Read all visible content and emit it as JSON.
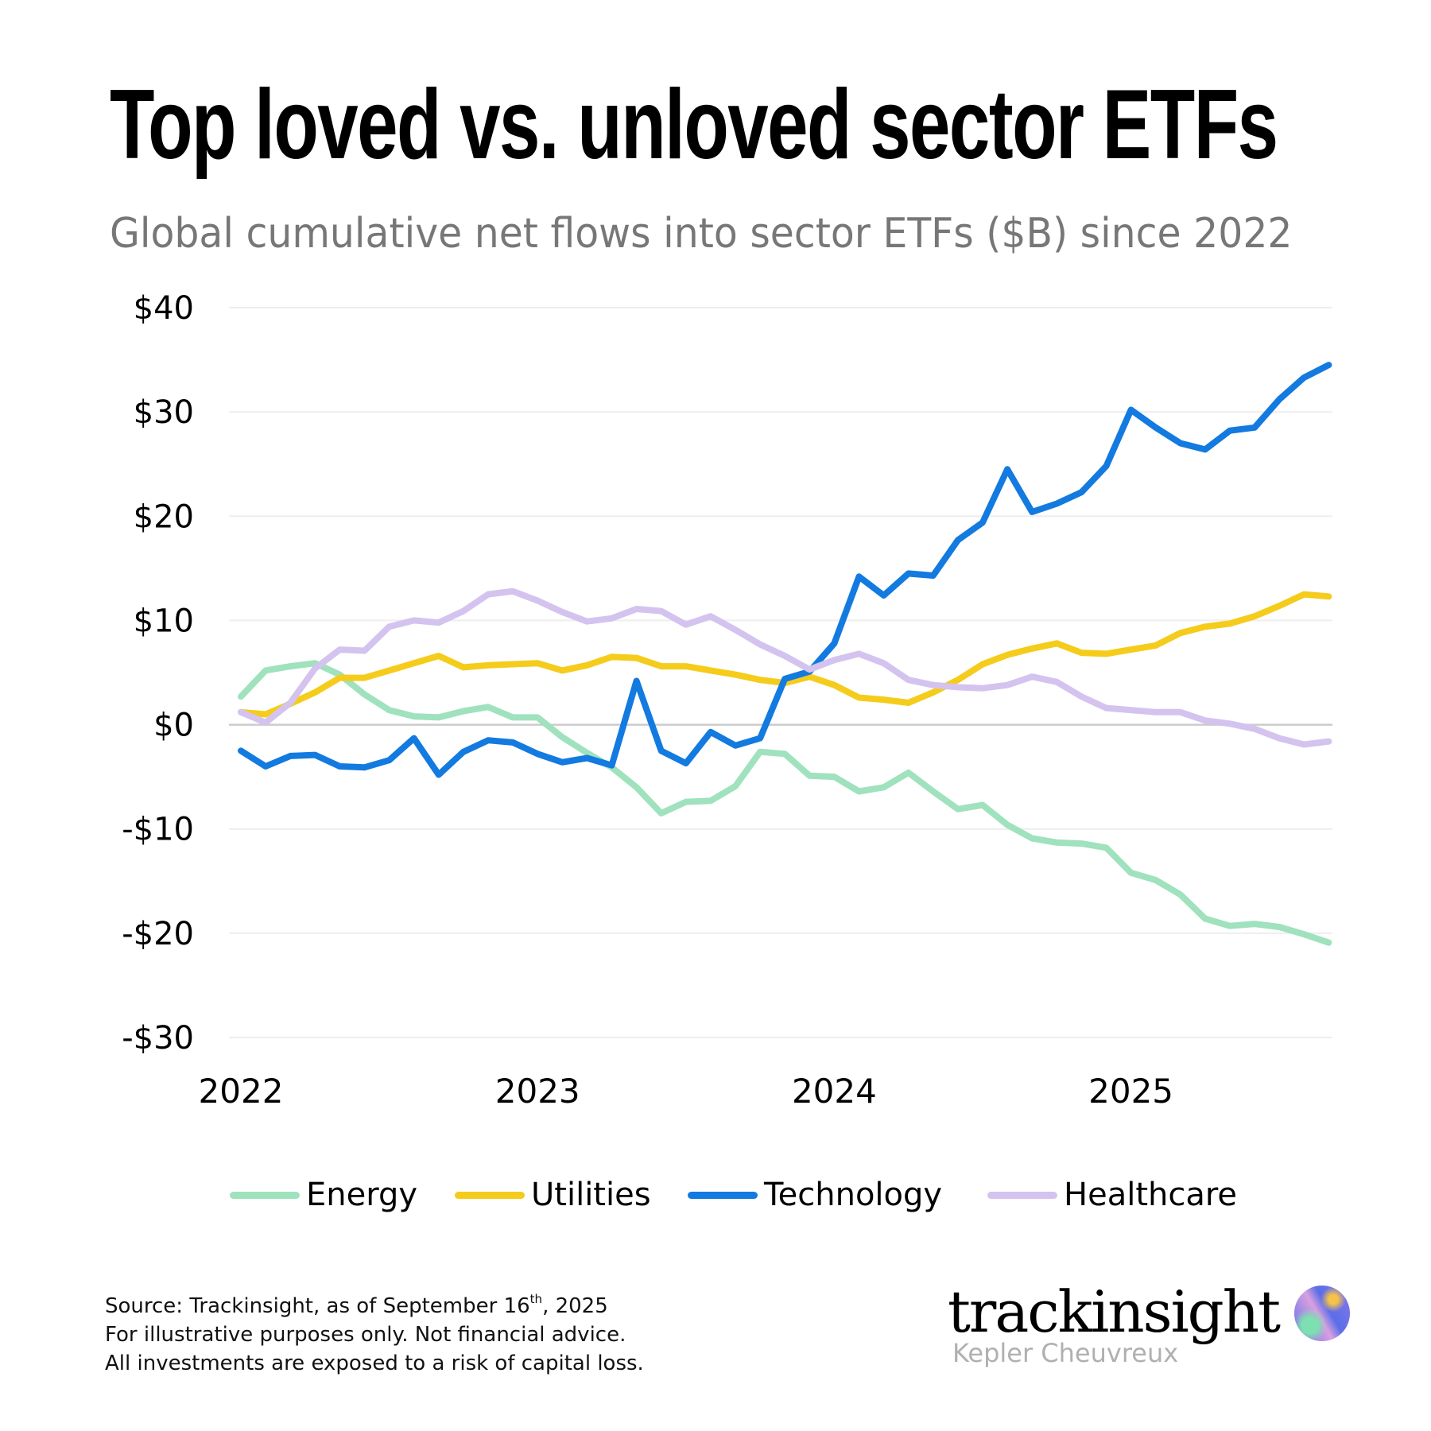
{
  "header": {
    "title": "Top loved vs. unloved sector ETFs",
    "subtitle": "Global cumulative net flows into sector ETFs ($B) since 2022"
  },
  "chart_data": {
    "type": "line",
    "title": "Top loved vs. unloved sector ETFs",
    "subtitle": "Global cumulative net flows into sector ETFs ($B) since 2022",
    "xlabel": "",
    "ylabel": "",
    "x": [
      "2022-01",
      "2022-02",
      "2022-03",
      "2022-04",
      "2022-05",
      "2022-06",
      "2022-07",
      "2022-08",
      "2022-09",
      "2022-10",
      "2022-11",
      "2022-12",
      "2023-01",
      "2023-02",
      "2023-03",
      "2023-04",
      "2023-05",
      "2023-06",
      "2023-07",
      "2023-08",
      "2023-09",
      "2023-10",
      "2023-11",
      "2023-12",
      "2024-01",
      "2024-02",
      "2024-03",
      "2024-04",
      "2024-05",
      "2024-06",
      "2024-07",
      "2024-08",
      "2024-09",
      "2024-10",
      "2024-11",
      "2024-12",
      "2025-01",
      "2025-02",
      "2025-03",
      "2025-04",
      "2025-05",
      "2025-06",
      "2025-07",
      "2025-08",
      "2025-09"
    ],
    "x_tick_labels": [
      "2022",
      "2023",
      "2024",
      "2025"
    ],
    "x_tick_positions": [
      "2022-01",
      "2023-01",
      "2024-01",
      "2025-01"
    ],
    "y_tick_values": [
      40,
      30,
      20,
      10,
      0,
      -10,
      -20,
      -30
    ],
    "y_tick_labels": [
      "$40",
      "$30",
      "$20",
      "$10",
      "$0",
      "-$10",
      "-$20",
      "-$30"
    ],
    "ylim": [
      -30,
      40
    ],
    "grid": true,
    "legend_position": "bottom",
    "series": [
      {
        "name": "Energy",
        "color": "#9fe2bd",
        "values": [
          2.7,
          5.2,
          5.6,
          5.9,
          4.8,
          2.9,
          1.4,
          0.8,
          0.7,
          1.3,
          1.7,
          0.7,
          0.7,
          -1.2,
          -2.7,
          -4.1,
          -6.0,
          -8.5,
          -7.4,
          -7.3,
          -5.9,
          -2.6,
          -2.8,
          -4.9,
          -5.0,
          -6.4,
          -6.0,
          -4.6,
          -6.4,
          -8.1,
          -7.7,
          -9.6,
          -10.9,
          -11.3,
          -11.4,
          -11.8,
          -14.2,
          -14.9,
          -16.3,
          -18.6,
          -19.3,
          -19.1,
          -19.4,
          -20.1,
          -20.9
        ]
      },
      {
        "name": "Utilities",
        "color": "#f5cc1b",
        "values": [
          1.2,
          1.0,
          2.0,
          3.1,
          4.5,
          4.5,
          5.2,
          5.9,
          6.6,
          5.5,
          5.7,
          5.8,
          5.9,
          5.2,
          5.7,
          6.5,
          6.4,
          5.6,
          5.6,
          5.2,
          4.8,
          4.3,
          4.0,
          4.6,
          3.8,
          2.6,
          2.4,
          2.1,
          3.1,
          4.3,
          5.8,
          6.7,
          7.3,
          7.8,
          6.9,
          6.8,
          7.2,
          7.6,
          8.8,
          9.4,
          9.7,
          10.4,
          11.4,
          12.5,
          12.3
        ]
      },
      {
        "name": "Technology",
        "color": "#137ae0",
        "values": [
          -2.5,
          -4.0,
          -3.0,
          -2.9,
          -4.0,
          -4.1,
          -3.4,
          -1.3,
          -4.8,
          -2.6,
          -1.5,
          -1.7,
          -2.8,
          -3.6,
          -3.2,
          -3.9,
          4.2,
          -2.5,
          -3.7,
          -0.7,
          -2.0,
          -1.3,
          4.4,
          5.1,
          7.8,
          14.2,
          12.4,
          14.5,
          14.3,
          17.7,
          19.4,
          24.5,
          20.4,
          21.2,
          22.3,
          24.8,
          30.2,
          28.5,
          27.0,
          26.4,
          28.2,
          28.5,
          31.2,
          33.3,
          34.5
        ]
      },
      {
        "name": "Healthcare",
        "color": "#d4c3ef",
        "values": [
          1.2,
          0.2,
          2.1,
          5.4,
          7.2,
          7.1,
          9.4,
          10.0,
          9.8,
          10.9,
          12.5,
          12.8,
          11.9,
          10.8,
          9.9,
          10.2,
          11.1,
          10.9,
          9.6,
          10.4,
          9.1,
          7.7,
          6.6,
          5.3,
          6.2,
          6.8,
          5.9,
          4.3,
          3.8,
          3.6,
          3.5,
          3.8,
          4.6,
          4.1,
          2.7,
          1.6,
          1.4,
          1.2,
          1.2,
          0.4,
          0.1,
          -0.4,
          -1.3,
          -1.9,
          -1.6
        ]
      }
    ]
  },
  "legend": [
    {
      "label": "Energy",
      "color": "#9fe2bd"
    },
    {
      "label": "Utilities",
      "color": "#f5cc1b"
    },
    {
      "label": "Technology",
      "color": "#137ae0"
    },
    {
      "label": "Healthcare",
      "color": "#d4c3ef"
    }
  ],
  "footer": {
    "source_prefix": "Source: Trackinsight, as of September 16",
    "source_sup": "th",
    "source_suffix": ", 2025",
    "line2": "For illustrative purposes only. Not financial advice.",
    "line3": "All investments are exposed to a risk of capital loss."
  },
  "branding": {
    "name": "trackinsight",
    "partner": "Kepler Cheuvreux",
    "logo_icon": "gradient-orb-icon"
  },
  "colors": {
    "gridline": "#eeeeee",
    "zero_line": "#cccccc",
    "subtitle": "#777777",
    "partner_text": "#b0b0b0"
  }
}
